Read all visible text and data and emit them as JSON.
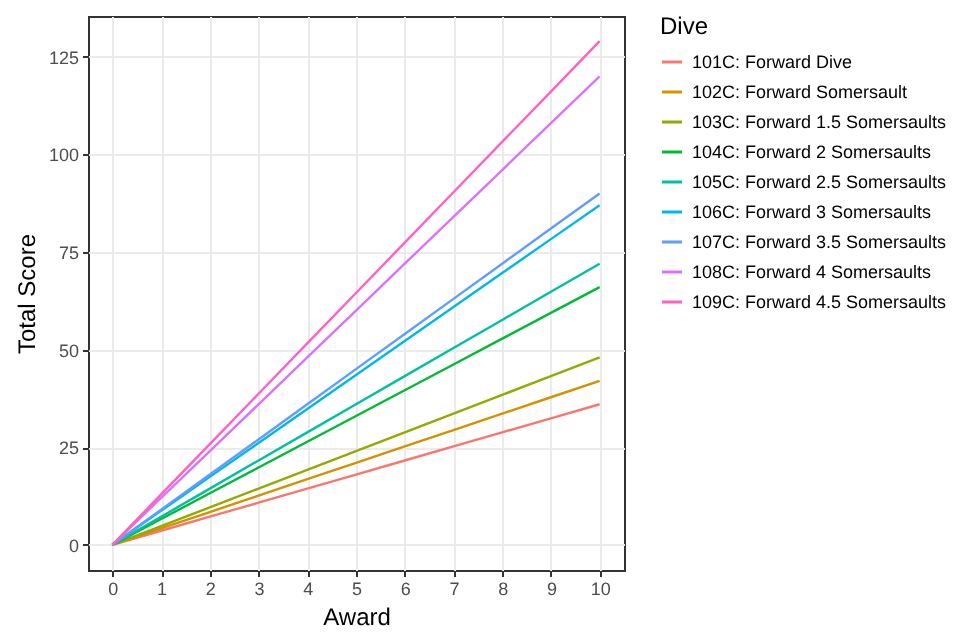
{
  "chart_data": {
    "type": "line",
    "xlabel": "Award",
    "ylabel": "Total Score",
    "legend_title": "Dive",
    "x": [
      0,
      1,
      2,
      3,
      4,
      5,
      6,
      7,
      8,
      9,
      10
    ],
    "xlim": [
      -0.5,
      10.5
    ],
    "xticks": [
      0,
      1,
      2,
      3,
      4,
      5,
      6,
      7,
      8,
      9,
      10
    ],
    "ylim": [
      -6.45,
      135.45
    ],
    "yticks": [
      0,
      25,
      50,
      75,
      100,
      125
    ],
    "grid": true,
    "legend": "right",
    "marker": "none",
    "line_style": "solid",
    "series": [
      {
        "name": "101C: Forward Dive",
        "color": "#f8766d",
        "values": [
          0,
          3.6,
          7.2,
          10.8,
          14.4,
          18,
          21.6,
          25.2,
          28.8,
          32.4,
          36
        ]
      },
      {
        "name": "102C: Forward Somersault",
        "color": "#d39200",
        "values": [
          0,
          4.2,
          8.4,
          12.6,
          16.8,
          21,
          25.2,
          29.4,
          33.6,
          37.8,
          42
        ]
      },
      {
        "name": "103C: Forward 1.5 Somersaults",
        "color": "#93aa00",
        "values": [
          0,
          4.8,
          9.6,
          14.4,
          19.2,
          24,
          28.8,
          33.6,
          38.4,
          43.2,
          48
        ]
      },
      {
        "name": "104C: Forward 2 Somersaults",
        "color": "#00ba38",
        "values": [
          0,
          6.6,
          13.2,
          19.8,
          26.4,
          33,
          39.6,
          46.2,
          52.8,
          59.4,
          66
        ]
      },
      {
        "name": "105C: Forward 2.5 Somersaults",
        "color": "#00c19f",
        "values": [
          0,
          7.2,
          14.4,
          21.6,
          28.8,
          36,
          43.2,
          50.4,
          57.6,
          64.8,
          72
        ]
      },
      {
        "name": "106C: Forward 3 Somersaults",
        "color": "#00b9e3",
        "values": [
          0,
          8.7,
          17.4,
          26.1,
          34.8,
          43.5,
          52.2,
          60.9,
          69.6,
          78.3,
          87
        ]
      },
      {
        "name": "107C: Forward 3.5 Somersaults",
        "color": "#619cff",
        "values": [
          0,
          9,
          18,
          27,
          36,
          45,
          54,
          63,
          72,
          81,
          90
        ]
      },
      {
        "name": "108C: Forward 4 Somersaults",
        "color": "#db72fb",
        "values": [
          0,
          12,
          24,
          36,
          48,
          60,
          72,
          84,
          96,
          108,
          120
        ]
      },
      {
        "name": "109C: Forward 4.5 Somersaults",
        "color": "#ff61c3",
        "values": [
          0,
          12.9,
          25.8,
          38.7,
          51.6,
          64.5,
          77.4,
          90.3,
          103.2,
          116.1,
          129
        ]
      }
    ]
  }
}
